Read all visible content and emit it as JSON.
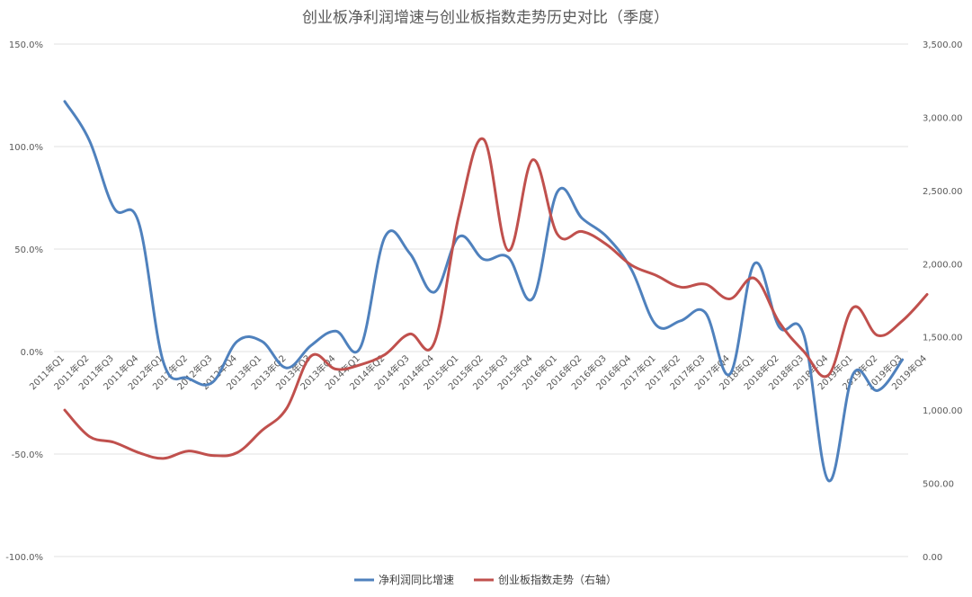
{
  "chart_data": {
    "type": "line",
    "title": "创业板净利润增速与创业板指数走势历史对比（季度）",
    "categories": [
      "2011年Q1",
      "2011年Q2",
      "2011年Q3",
      "2011年Q4",
      "2012年Q1",
      "2012年Q2",
      "2012年Q3",
      "2012年Q4",
      "2013年Q1",
      "2013年Q2",
      "2013年Q3",
      "2013年Q4",
      "2014年Q1",
      "2014年Q2",
      "2014年Q3",
      "2014年Q4",
      "2015年Q1",
      "2015年Q2",
      "2015年Q3",
      "2015年Q4",
      "2016年Q1",
      "2016年Q2",
      "2016年Q3",
      "2016年Q4",
      "2017年Q1",
      "2017年Q2",
      "2017年Q3",
      "2017年Q4",
      "2018年Q1",
      "2018年Q2",
      "2018年Q3",
      "2018年Q4",
      "2019年Q1",
      "2019年Q2",
      "2019年Q3",
      "2019年Q4"
    ],
    "y_left": {
      "ticks": [
        "150.0%",
        "100.0%",
        "50.0%",
        "0.0%",
        "-50.0%",
        "-100.0%"
      ],
      "tick_values": [
        150,
        100,
        50,
        0,
        -50,
        -100
      ],
      "ylim": [
        -100,
        150
      ]
    },
    "y_right": {
      "ticks": [
        "3,500.00",
        "3,000.00",
        "2,500.00",
        "2,000.00",
        "1,500.00",
        "1,000.00",
        "500.00",
        "0.00"
      ],
      "tick_values": [
        3500,
        3000,
        2500,
        2000,
        1500,
        1000,
        500,
        0
      ],
      "ylim": [
        0,
        3500
      ]
    },
    "series": [
      {
        "name": "净利润同比增速",
        "axis": "left",
        "color": "#4f81bd",
        "values": [
          122,
          103,
          70,
          63,
          -5,
          -13,
          -15,
          5,
          5,
          -8,
          3,
          10,
          2,
          56,
          48,
          29,
          56,
          45,
          46,
          26,
          78,
          65,
          56,
          40,
          13,
          15,
          19,
          -11,
          43,
          12,
          8,
          -63,
          -11,
          -19,
          -4,
          null
        ]
      },
      {
        "name": "创业板指数走势（右轴）",
        "axis": "right",
        "color": "#c0504d",
        "values": [
          1000,
          820,
          780,
          710,
          670,
          720,
          690,
          710,
          860,
          1010,
          1370,
          1280,
          1310,
          1380,
          1520,
          1460,
          2330,
          2850,
          2090,
          2710,
          2200,
          2220,
          2130,
          1990,
          1920,
          1840,
          1860,
          1760,
          1900,
          1600,
          1400,
          1240,
          1700,
          1510,
          1610,
          1790
        ]
      }
    ],
    "legend": {
      "position": "bottom"
    },
    "grid": true
  }
}
